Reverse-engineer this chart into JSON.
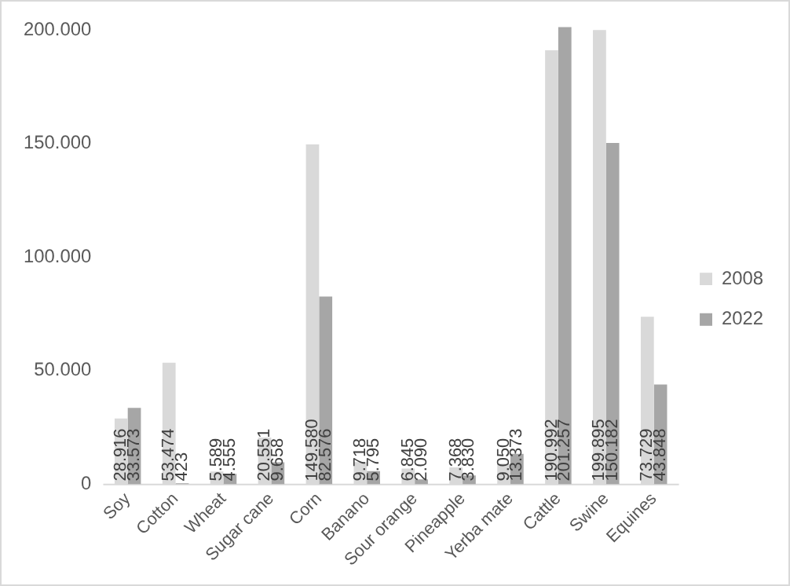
{
  "chart_data": {
    "type": "bar",
    "categories": [
      "Soy",
      "Cotton",
      "Wheat",
      "Sugar cane",
      "Corn",
      "Banano",
      "Sour orange",
      "Pineapple",
      "Yerba mate",
      "Cattle",
      "Swine",
      "Equines"
    ],
    "series": [
      {
        "name": "2008",
        "color": "#d9d9d9",
        "values": [
          28916,
          53474,
          5589,
          20551,
          149580,
          9718,
          6845,
          7368,
          9050,
          190992,
          199895,
          73729
        ],
        "value_labels": [
          "28.916",
          "53.474",
          "5.589",
          "20.551",
          "149.580",
          "9.718",
          "6.845",
          "7.368",
          "9.050",
          "190.992",
          "199.895",
          "73.729"
        ]
      },
      {
        "name": "2022",
        "color": "#a6a6a6",
        "values": [
          33573,
          423,
          4555,
          9658,
          82576,
          5795,
          2090,
          3830,
          13373,
          201257,
          150182,
          43848
        ],
        "value_labels": [
          "33.573",
          "423",
          "4.555",
          "9.658",
          "82.576",
          "5.795",
          "2.090",
          "3.830",
          "13.373",
          "201.257",
          "150.182",
          "43.848"
        ]
      }
    ],
    "ylim": [
      0,
      202000
    ],
    "yticks": [
      {
        "value": 0,
        "label": "0"
      },
      {
        "value": 50000,
        "label": "50.000"
      },
      {
        "value": 100000,
        "label": "100.000"
      },
      {
        "value": 150000,
        "label": "150.000"
      },
      {
        "value": 200000,
        "label": "200.000"
      }
    ],
    "grid": false,
    "legend": "right"
  }
}
